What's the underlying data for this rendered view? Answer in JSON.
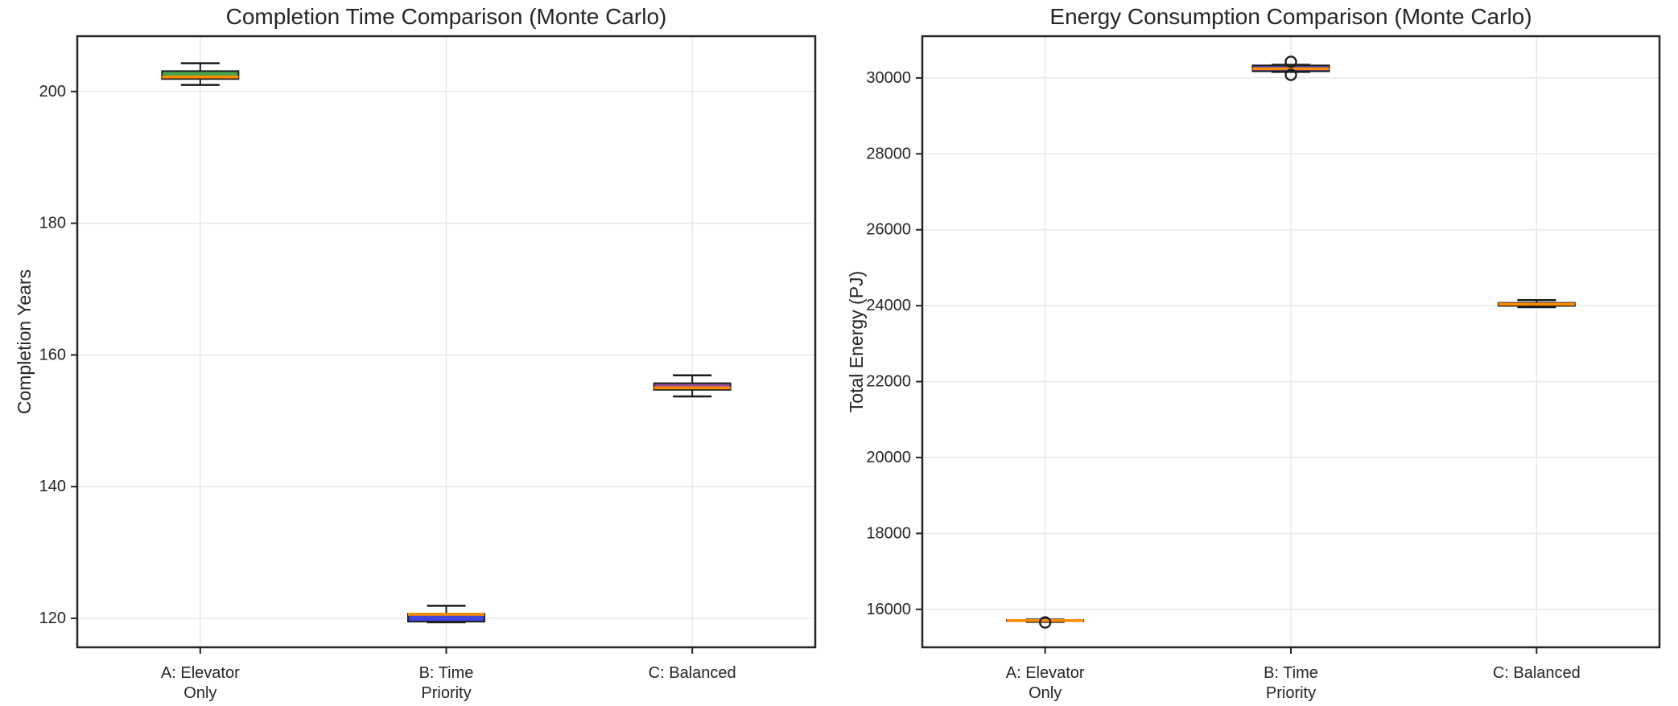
{
  "colors": {
    "background": "#ffffff",
    "grid": "#e8e8e8",
    "spine": "#262626",
    "text": "#262626",
    "median": "#ff8c00",
    "box_edge": "#1f1f1f",
    "box_fill_a": "#4aa54e",
    "box_fill_b": "#4343dd",
    "box_fill_c": "#9d509c"
  },
  "chart_data": [
    {
      "type": "box",
      "title": "Completion Time Comparison (Monte Carlo)",
      "ylabel": "Completion Years",
      "xlabel": "",
      "grid": true,
      "legend": "none",
      "categories": [
        "A: Elevator\nOnly",
        "B: Time\nPriority",
        "C: Balanced"
      ],
      "ylim": [
        115.6,
        208.4
      ],
      "yticks": [
        120,
        140,
        160,
        180,
        200
      ],
      "series": [
        {
          "name": "A: Elevator Only",
          "fill": "#4aa54e",
          "whislo": 201.0,
          "q1": 201.9,
          "med": 202.2,
          "q3": 203.1,
          "whishi": 204.3,
          "fliers": []
        },
        {
          "name": "B: Time Priority",
          "fill": "#4343dd",
          "whislo": 119.4,
          "q1": 119.5,
          "med": 120.6,
          "q3": 120.7,
          "whishi": 121.9,
          "fliers": []
        },
        {
          "name": "C: Balanced",
          "fill": "#9d509c",
          "whislo": 153.7,
          "q1": 154.7,
          "med": 155.0,
          "q3": 155.7,
          "whishi": 156.9,
          "fliers": []
        }
      ]
    },
    {
      "type": "box",
      "title": "Energy Consumption Comparison (Monte Carlo)",
      "ylabel": "Total Energy (PJ)",
      "xlabel": "",
      "grid": true,
      "legend": "none",
      "categories": [
        "A: Elevator\nOnly",
        "B: Time\nPriority",
        "C: Balanced"
      ],
      "ylim": [
        15000,
        31100
      ],
      "yticks": [
        16000,
        18000,
        20000,
        22000,
        24000,
        26000,
        28000,
        30000
      ],
      "series": [
        {
          "name": "A: Elevator Only",
          "fill": "#4aa54e",
          "whislo": 15670,
          "q1": 15690,
          "med": 15705,
          "q3": 15715,
          "whishi": 15730,
          "fliers": [
            15655
          ]
        },
        {
          "name": "B: Time Priority",
          "fill": "#4343dd",
          "whislo": 30160,
          "q1": 30175,
          "med": 30245,
          "q3": 30330,
          "whishi": 30345,
          "fliers": [
            30425,
            30080
          ]
        },
        {
          "name": "C: Balanced",
          "fill": "#9d509c",
          "whislo": 23960,
          "q1": 23995,
          "med": 24040,
          "q3": 24075,
          "whishi": 24145,
          "fliers": []
        }
      ]
    }
  ]
}
